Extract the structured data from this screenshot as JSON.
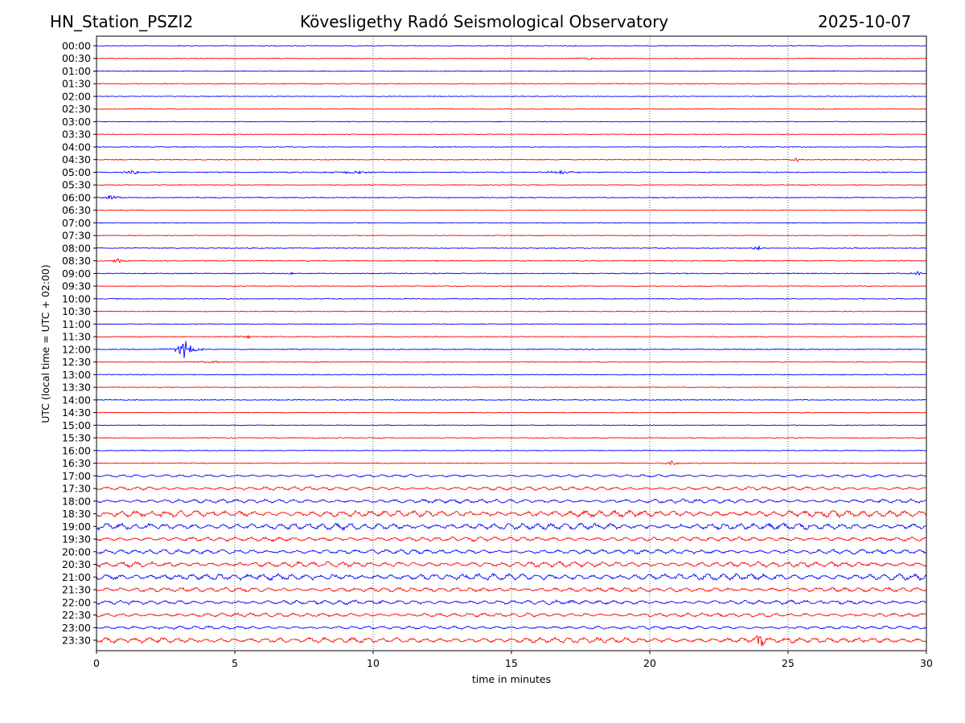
{
  "header": {
    "station": "HN_Station_PSZI2",
    "title": "Kövesligethy Radó Seismological Observatory",
    "date": "2025-10-07"
  },
  "chart_data": {
    "type": "line",
    "title": "Kövesligethy Radó Seismological Observatory",
    "xlabel": "time in minutes",
    "ylabel": "UTC (local time = UTC + 02:00)",
    "xlim": [
      0,
      30
    ],
    "xticks": [
      "0",
      "5",
      "10",
      "15",
      "20",
      "25",
      "30"
    ],
    "grid": "vertical dotted at 5-minute intervals",
    "row_labels": [
      "00:00",
      "00:30",
      "01:00",
      "01:30",
      "02:00",
      "02:30",
      "03:00",
      "03:30",
      "04:00",
      "04:30",
      "05:00",
      "05:30",
      "06:00",
      "06:30",
      "07:00",
      "07:30",
      "08:00",
      "08:30",
      "09:00",
      "09:30",
      "10:00",
      "10:30",
      "11:00",
      "11:30",
      "12:00",
      "12:30",
      "13:00",
      "13:30",
      "14:00",
      "14:30",
      "15:00",
      "15:30",
      "16:00",
      "16:30",
      "17:00",
      "17:30",
      "18:00",
      "18:30",
      "19:00",
      "19:30",
      "20:00",
      "20:30",
      "21:00",
      "21:30",
      "22:00",
      "22:30",
      "23:00",
      "23:30"
    ],
    "colors": [
      "#0000ff",
      "#ff0000"
    ],
    "noise_level": [
      0.6,
      0.6,
      0.6,
      0.7,
      0.6,
      0.6,
      0.6,
      0.6,
      0.6,
      0.8,
      0.8,
      0.7,
      0.7,
      0.6,
      0.6,
      0.6,
      0.7,
      0.8,
      0.8,
      0.6,
      0.7,
      0.6,
      0.6,
      0.7,
      0.8,
      0.7,
      0.7,
      0.6,
      0.7,
      0.6,
      0.6,
      0.6,
      0.6,
      0.7,
      1.8,
      2.5,
      2.8,
      4.5,
      4.5,
      3,
      3.2,
      3.8,
      4.5,
      3.2,
      3,
      2.8,
      2.2,
      3.8
    ],
    "events": [
      {
        "row": 24,
        "minute": 3.2,
        "amplitude": 12,
        "duration": 0.5
      },
      {
        "row": 33,
        "minute": 20.8,
        "amplitude": 3,
        "duration": 0.5
      },
      {
        "row": 9,
        "minute": 25.3,
        "amplitude": 5,
        "duration": 0.2
      },
      {
        "row": 10,
        "minute": 1.3,
        "amplitude": 2.5,
        "duration": 0.6
      },
      {
        "row": 10,
        "minute": 9.3,
        "amplitude": 2.5,
        "duration": 0.8
      },
      {
        "row": 10,
        "minute": 16.8,
        "amplitude": 2.5,
        "duration": 0.6
      },
      {
        "row": 12,
        "minute": 0.5,
        "amplitude": 2.5,
        "duration": 0.6
      },
      {
        "row": 16,
        "minute": 23.9,
        "amplitude": 3,
        "duration": 0.3
      },
      {
        "row": 17,
        "minute": 0.8,
        "amplitude": 3,
        "duration": 0.4
      },
      {
        "row": 18,
        "minute": 29.7,
        "amplitude": 3,
        "duration": 0.3
      },
      {
        "row": 18,
        "minute": 7,
        "amplitude": 2,
        "duration": 0.5
      },
      {
        "row": 23,
        "minute": 5.5,
        "amplitude": 2,
        "duration": 0.5
      },
      {
        "row": 25,
        "minute": 4.2,
        "amplitude": 2,
        "duration": 0.6
      },
      {
        "row": 1,
        "minute": 17.8,
        "amplitude": 1.5,
        "duration": 0.6
      },
      {
        "row": 47,
        "minute": 24,
        "amplitude": 12,
        "duration": 0.2
      }
    ]
  }
}
